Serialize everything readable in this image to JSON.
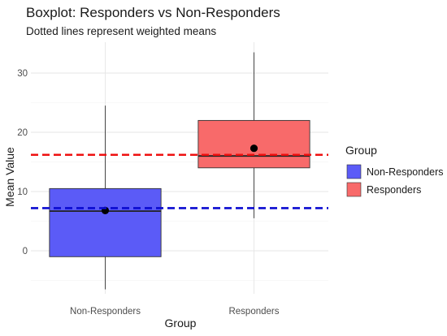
{
  "chart_data": {
    "type": "boxplot",
    "title": "Boxplot: Responders vs Non-Responders",
    "subtitle": "Dotted lines represent weighted means",
    "xlabel": "Group",
    "ylabel": "Mean Value",
    "ylim": [
      -6.5,
      34
    ],
    "yticks": [
      0,
      10,
      20,
      30
    ],
    "grid": true,
    "legend": {
      "title": "Group",
      "placement": "right",
      "entries": [
        "Non-Responders",
        "Responders"
      ]
    },
    "categories": [
      "Non-Responders",
      "Responders"
    ],
    "boxes": [
      {
        "name": "Non-Responders",
        "whisker_low": -6.5,
        "q1": -1,
        "median": 6.7,
        "q3": 10.5,
        "whisker_high": 24.5,
        "mean": 6.8,
        "color": "#5b5bf7"
      },
      {
        "name": "Responders",
        "whisker_low": 5.5,
        "q1": 14,
        "median": 16,
        "q3": 22,
        "whisker_high": 33.5,
        "mean": 17.3,
        "color": "#f86a6a"
      }
    ],
    "weighted_means": [
      {
        "group": "Non-Responders",
        "value": 7.2,
        "color": "#0a0ad0"
      },
      {
        "group": "Responders",
        "value": 16.2,
        "color": "#ee1010"
      }
    ]
  }
}
